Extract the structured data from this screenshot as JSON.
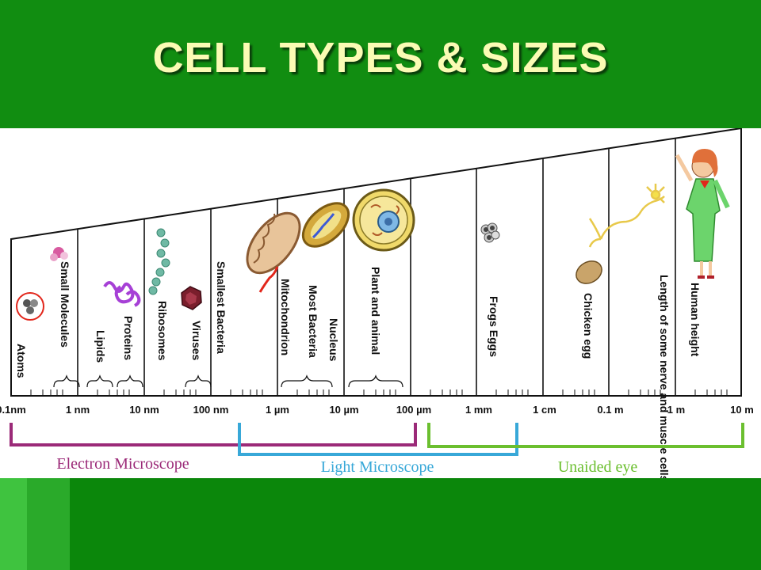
{
  "slide": {
    "title": "CELL TYPES & SIZES"
  },
  "colors": {
    "background_green": "#118d11",
    "title_text": "#fbfbb4",
    "electron_microscope": "#9b2a78",
    "light_microscope": "#38a8d8",
    "unaided_eye": "#6bbf2f"
  },
  "scale": {
    "ticks": [
      "0.1nm",
      "1 nm",
      "10 nm",
      "100 nm",
      "1 µm",
      "10 µm",
      "100 µm",
      "1 mm",
      "1 cm",
      "0.1 m",
      "1 m",
      "10 m"
    ]
  },
  "objects": [
    {
      "label": "Atoms",
      "icon": "atom-icon"
    },
    {
      "label": "Small Molecules",
      "icon": "small-molecule-icon"
    },
    {
      "label": "Lipids",
      "icon": "lipid-icon"
    },
    {
      "label": "Proteins",
      "icon": "protein-icon"
    },
    {
      "label": "Ribosomes",
      "icon": "ribosome-icon"
    },
    {
      "label": "Viruses",
      "icon": "virus-icon"
    },
    {
      "label": "Smallest Bacteria",
      "icon": ""
    },
    {
      "label": "Mitochondrion",
      "icon": "mitochondrion-icon"
    },
    {
      "label": "Most Bacteria",
      "icon": "bacterium-icon"
    },
    {
      "label": "Nucleus",
      "icon": ""
    },
    {
      "label": "Plant and animal",
      "icon": "plant-animal-cell-icon"
    },
    {
      "label": "Frogs Eggs",
      "icon": "frog-eggs-icon"
    },
    {
      "label": "Chicken egg",
      "icon": "chicken-egg-icon"
    },
    {
      "label": "Length of some nerve and muscle cells",
      "icon": "nerve-cell-icon"
    },
    {
      "label": "Human height",
      "icon": "human-figure-icon"
    }
  ],
  "ranges": [
    {
      "label": "Electron Microscope"
    },
    {
      "label": "Light Microscope"
    },
    {
      "label": "Unaided eye"
    }
  ]
}
